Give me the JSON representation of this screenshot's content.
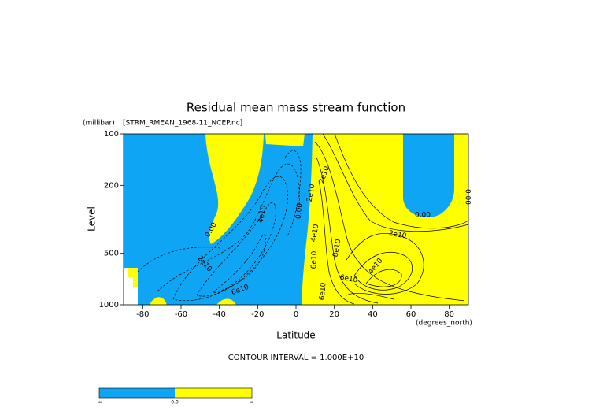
{
  "chart_data": {
    "type": "contour",
    "title": "Residual mean mass stream function",
    "subtitle": "[STRM_RMEAN_1968-11_NCEP.nc]",
    "x_label": "Latitude",
    "x_units": "(degrees_north)",
    "y_label": "Level",
    "y_units": "(millibar)",
    "xlim": [
      -90,
      90
    ],
    "xticks": [
      -80,
      -60,
      -40,
      -20,
      0,
      20,
      40,
      60,
      80
    ],
    "ylim": [
      1000,
      100
    ],
    "yticks": [
      100,
      200,
      500,
      1000
    ],
    "log_y": true,
    "footer": "CONTOUR INTERVAL = 1.000E+10",
    "fill_colors": [
      "#0ea5f4",
      "#ffff00"
    ],
    "colorbar_labels": [
      "-∞",
      "0.0",
      "∞"
    ],
    "annotations": [
      "0.00",
      "2e10",
      "6e10",
      "4e10",
      "2e10",
      "0.00",
      "6e10",
      "2e10",
      "4e10",
      "8e10",
      "6e10",
      "4e10",
      "2e10",
      "0.00",
      "0.00",
      "6e10"
    ]
  }
}
